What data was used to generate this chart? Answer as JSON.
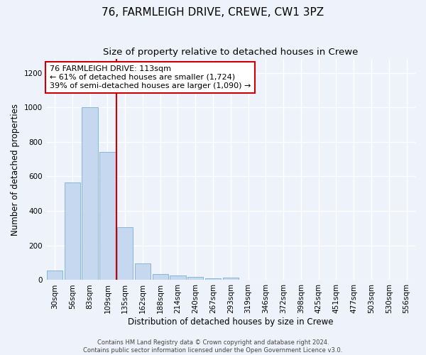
{
  "title": "76, FARMLEIGH DRIVE, CREWE, CW1 3PZ",
  "subtitle": "Size of property relative to detached houses in Crewe",
  "xlabel": "Distribution of detached houses by size in Crewe",
  "ylabel": "Number of detached properties",
  "bar_color": "#c5d8ef",
  "bar_edge_color": "#7aafd4",
  "categories": [
    "30sqm",
    "56sqm",
    "83sqm",
    "109sqm",
    "135sqm",
    "162sqm",
    "188sqm",
    "214sqm",
    "240sqm",
    "267sqm",
    "293sqm",
    "319sqm",
    "346sqm",
    "372sqm",
    "398sqm",
    "425sqm",
    "451sqm",
    "477sqm",
    "503sqm",
    "530sqm",
    "556sqm"
  ],
  "values": [
    55,
    565,
    1000,
    740,
    305,
    95,
    35,
    25,
    20,
    10,
    15,
    0,
    0,
    0,
    0,
    0,
    0,
    0,
    0,
    0,
    0
  ],
  "ylim": [
    0,
    1280
  ],
  "yticks": [
    0,
    200,
    400,
    600,
    800,
    1000,
    1200
  ],
  "annotation_text": "76 FARMLEIGH DRIVE: 113sqm\n← 61% of detached houses are smaller (1,724)\n39% of semi-detached houses are larger (1,090) →",
  "annotation_box_color": "#ffffff",
  "annotation_border_color": "#cc0000",
  "red_line_color": "#cc0000",
  "background_color": "#eef2fb",
  "plot_bg_color": "#eef2fb",
  "footer_text": "Contains HM Land Registry data © Crown copyright and database right 2024.\nContains public sector information licensed under the Open Government Licence v3.0.",
  "grid_color": "#ffffff",
  "title_fontsize": 11,
  "subtitle_fontsize": 9.5,
  "axis_label_fontsize": 8.5,
  "tick_fontsize": 7.5,
  "annotation_fontsize": 8,
  "footer_fontsize": 6
}
